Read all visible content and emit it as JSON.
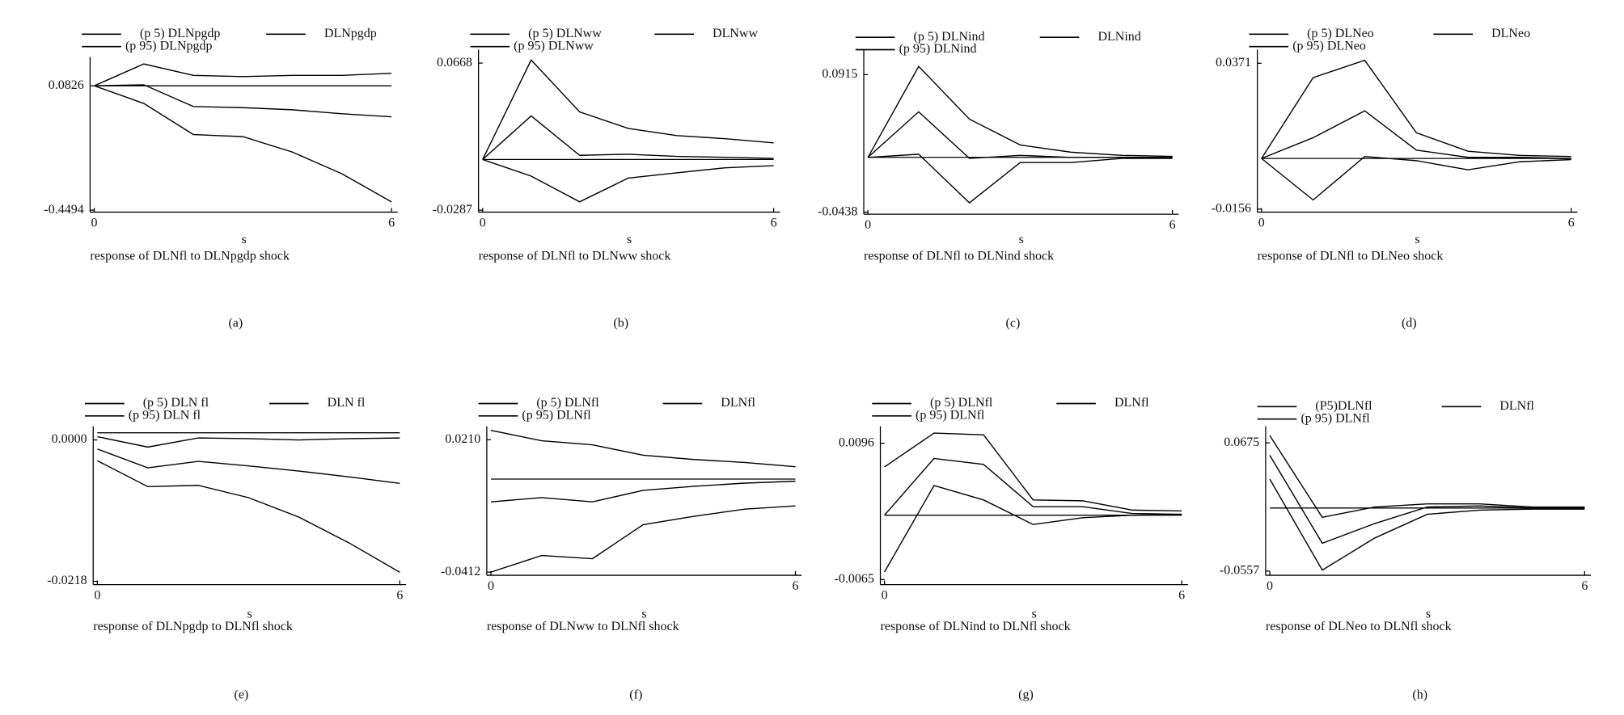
{
  "chart_data": [
    {
      "type": "line",
      "title": "response of DLNfl to DLNpgdp shock",
      "xlabel": "s",
      "caption": "(a)",
      "x": [
        0,
        1,
        2,
        3,
        4,
        5,
        6
      ],
      "xticks": [
        0,
        6
      ],
      "xlim": [
        0,
        6
      ],
      "ylim": [
        -0.458,
        0.206
      ],
      "yticks": [
        0.0826,
        -0.4494
      ],
      "hline": 0.0826,
      "series": [
        {
          "name": "(p 5) DLNpgdp",
          "color": "#000000",
          "values": [
            0.0826,
            0.007,
            -0.126,
            -0.135,
            -0.201,
            -0.294,
            -0.414
          ]
        },
        {
          "name": "DLNpgdp",
          "color": "#000000",
          "values": [
            0.0826,
            0.087,
            -0.006,
            -0.011,
            -0.02,
            -0.037,
            -0.05
          ]
        },
        {
          "name": "(p 95) DLNpgdp",
          "color": "#000000",
          "values": [
            0.0826,
            0.176,
            0.127,
            0.122,
            0.127,
            0.127,
            0.136
          ]
        }
      ]
    },
    {
      "type": "line",
      "title": "response of DLNfl to DLNww shock",
      "xlabel": "s",
      "caption": "(b)",
      "x": [
        0,
        1,
        2,
        3,
        4,
        5,
        6
      ],
      "xticks": [
        0,
        6
      ],
      "xlim": [
        0,
        6
      ],
      "ylim": [
        -0.03,
        0.0755
      ],
      "yticks": [
        0.0668,
        -0.0287
      ],
      "hline": 0.0042,
      "series": [
        {
          "name": "(p 5) DLNww",
          "color": "#000000",
          "values": [
            0.0042,
            -0.0066,
            -0.0233,
            -0.0079,
            -0.0045,
            -0.0012,
            0.0002
          ]
        },
        {
          "name": "DLNww",
          "color": "#000000",
          "values": [
            0.0042,
            0.0325,
            0.0069,
            0.0076,
            0.0062,
            0.0056,
            0.0049
          ]
        },
        {
          "name": "(p 95) DLNww",
          "color": "#000000",
          "values": [
            0.0042,
            0.0688,
            0.0351,
            0.0244,
            0.0197,
            0.0177,
            0.015
          ]
        }
      ]
    },
    {
      "type": "line",
      "title": "response of DLNfl to DLNind shock",
      "xlabel": "s",
      "caption": "(c)",
      "x": [
        0,
        1,
        2,
        3,
        4,
        5,
        6
      ],
      "xticks": [
        0,
        6
      ],
      "xlim": [
        0,
        6
      ],
      "ylim": [
        -0.0458,
        0.116
      ],
      "yticks": [
        0.0915,
        -0.0438
      ],
      "hline": 0.0101,
      "series": [
        {
          "name": "(p 5) DLNind",
          "color": "#000000",
          "values": [
            0.0101,
            0.0132,
            -0.0346,
            0.005,
            0.005,
            0.0091,
            0.0091
          ]
        },
        {
          "name": "DLNind",
          "color": "#000000",
          "values": [
            0.0101,
            0.0549,
            0.0091,
            0.0121,
            0.0101,
            0.0101,
            0.0101
          ]
        },
        {
          "name": "(p 95) DLNind",
          "color": "#000000",
          "values": [
            0.0101,
            0.0996,
            0.0477,
            0.0223,
            0.0152,
            0.0121,
            0.0111
          ]
        }
      ]
    },
    {
      "type": "line",
      "title": "response of DLNfl to DLNeo shock",
      "xlabel": "s",
      "caption": "(d)",
      "x": [
        0,
        1,
        2,
        3,
        4,
        5,
        6
      ],
      "xticks": [
        0,
        6
      ],
      "xlim": [
        0,
        6
      ],
      "ylim": [
        -0.0167,
        0.042
      ],
      "yticks": [
        0.0371,
        -0.0156
      ],
      "hline": 0.0027,
      "series": [
        {
          "name": "(p 5) DLNeo",
          "color": "#000000",
          "values": [
            0.0027,
            -0.0123,
            0.0034,
            0.0019,
            -0.0014,
            0.0015,
            0.0023
          ]
        },
        {
          "name": "DLNeo",
          "color": "#000000",
          "values": [
            0.0027,
            0.0102,
            0.0199,
            0.0057,
            0.0031,
            0.0031,
            0.0027
          ]
        },
        {
          "name": "(p 95) DLNeo",
          "color": "#000000",
          "values": [
            0.0027,
            0.0319,
            0.0382,
            0.012,
            0.0053,
            0.0038,
            0.0034
          ]
        }
      ]
    },
    {
      "type": "line",
      "title": "response of DLNpgdp to DLNfl shock",
      "xlabel": "s",
      "caption": "(e)",
      "x": [
        0,
        1,
        2,
        3,
        4,
        5,
        6
      ],
      "xticks": [
        0,
        6
      ],
      "xlim": [
        0,
        6
      ],
      "ylim": [
        -0.0223,
        0.0021
      ],
      "yticks": [
        {
          "value": 0,
          "label": "0.0000"
        },
        -0.0218
      ],
      "hline": 0.0011,
      "series": [
        {
          "name": "(p 5) DLN fl",
          "color": "#000000",
          "values": [
            -0.0032,
            -0.0072,
            -0.007,
            -0.0089,
            -0.0119,
            -0.0159,
            -0.0204
          ]
        },
        {
          "name": "DLN fl",
          "color": "#000000",
          "values": [
            -0.0014,
            -0.0043,
            -0.0033,
            -0.004,
            -0.0048,
            -0.0057,
            -0.0067
          ]
        },
        {
          "name": "(p 95) DLN fl",
          "color": "#000000",
          "values": [
            0.0005,
            -0.0011,
            0.0003,
            0.0002,
            0,
            0.0002,
            0.0003
          ]
        }
      ]
    },
    {
      "type": "line",
      "title": "response of DLNww to DLNfl shock",
      "xlabel": "s",
      "caption": "(f)",
      "x": [
        0,
        1,
        2,
        3,
        4,
        5,
        6
      ],
      "xticks": [
        0,
        6
      ],
      "xlim": [
        0,
        6
      ],
      "ylim": [
        -0.0427,
        0.0273
      ],
      "yticks": [
        {
          "value": 0.021,
          "label": "0.0210"
        },
        -0.0412
      ],
      "hline": 0.0025,
      "series": [
        {
          "name": "(p 5) DLNfl",
          "color": "#000000",
          "values": [
            -0.0412,
            -0.0334,
            -0.0349,
            -0.0189,
            -0.015,
            -0.0116,
            -0.0101
          ]
        },
        {
          "name": "DLNfl",
          "color": "#000000",
          "values": [
            -0.0082,
            -0.0062,
            -0.0082,
            -0.0028,
            -0.0009,
            0.0006,
            0.0015
          ]
        },
        {
          "name": "(p 95) DLNfl",
          "color": "#000000",
          "values": [
            0.0254,
            0.0205,
            0.0186,
            0.0137,
            0.0117,
            0.0103,
            0.0083
          ]
        }
      ]
    },
    {
      "type": "line",
      "title": "response of DLNind to DLNfl shock",
      "xlabel": "s",
      "caption": "(g)",
      "x": [
        0,
        1,
        2,
        3,
        4,
        5,
        6
      ],
      "xticks": [
        0,
        6
      ],
      "xlim": [
        0,
        6
      ],
      "ylim": [
        -0.0071,
        0.0116
      ],
      "yticks": [
        0.0096,
        -0.0065
      ],
      "hline": 0.0011,
      "series": [
        {
          "name": "(p 5) DLNfl",
          "color": "#000000",
          "values": [
            -0.0056,
            0.0046,
            0.0029,
            0,
            0.0008,
            0.0011,
            0.0012
          ]
        },
        {
          "name": "DLNfl",
          "color": "#000000",
          "values": [
            0.0011,
            0.0078,
            0.0071,
            0.0021,
            0.0021,
            0.0013,
            0.0012
          ]
        },
        {
          "name": "(p 95) DLNfl",
          "color": "#000000",
          "values": [
            0.0068,
            0.0108,
            0.0106,
            0.0029,
            0.0028,
            0.0017,
            0.0016
          ]
        }
      ]
    },
    {
      "type": "line",
      "title": "response of DLNeo to DLNfl shock",
      "xlabel": "s",
      "caption": "(h)",
      "x": [
        0,
        1,
        2,
        3,
        4,
        5,
        6
      ],
      "xticks": [
        0,
        6
      ],
      "xlim": [
        0,
        6
      ],
      "ylim": [
        -0.0597,
        0.0834
      ],
      "yticks": [
        0.0675,
        -0.0557
      ],
      "hline": 0.0049,
      "series": [
        {
          "name": "(P5)DLNfl",
          "color": "#000000",
          "values": [
            0.0327,
            -0.0547,
            -0.0239,
            -0.0011,
            0.0029,
            0.0039,
            0.0039
          ]
        },
        {
          "name": "DLNfl",
          "color": "#000000",
          "values": [
            0.0556,
            -0.0289,
            -0.01,
            0.0059,
            0.0069,
            0.0049,
            0.0049
          ]
        },
        {
          "name": "(p 95) DLNfl",
          "color": "#000000",
          "values": [
            0.0745,
            -0.004,
            0.0059,
            0.0089,
            0.0089,
            0.0059,
            0.0059
          ]
        }
      ]
    }
  ]
}
